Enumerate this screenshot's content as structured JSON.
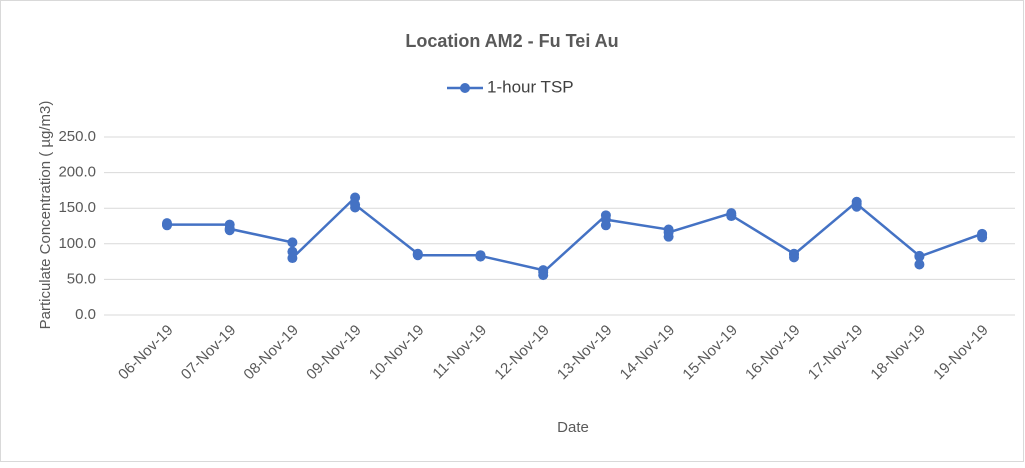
{
  "chart_data": {
    "type": "line",
    "title": "Location AM2 - Fu Tei Au",
    "x_label": "Date",
    "y_label": "Particulate Concentration ( µg/m3)",
    "categories": [
      "06-Nov-19",
      "07-Nov-19",
      "08-Nov-19",
      "09-Nov-19",
      "10-Nov-19",
      "11-Nov-19",
      "12-Nov-19",
      "13-Nov-19",
      "14-Nov-19",
      "15-Nov-19",
      "16-Nov-19",
      "17-Nov-19",
      "18-Nov-19",
      "19-Nov-19"
    ],
    "series": [
      {
        "name": "1-hour TSP",
        "color": "#4472c4",
        "values": [
          [
            129,
            126,
            127
          ],
          [
            127,
            119,
            121
          ],
          [
            102,
            89,
            80
          ],
          [
            165,
            151,
            155
          ],
          [
            86,
            85,
            84
          ],
          [
            84,
            82,
            83
          ],
          [
            63,
            56,
            60
          ],
          [
            140,
            126,
            134
          ],
          [
            120,
            110,
            116
          ],
          [
            143,
            139,
            140
          ],
          [
            86,
            81,
            85
          ],
          [
            159,
            152,
            156
          ],
          [
            83,
            71,
            82
          ],
          [
            114,
            109,
            113
          ]
        ]
      }
    ],
    "ylim": [
      0,
      250
    ],
    "yticks": [
      {
        "value": 0,
        "label": "0.0"
      },
      {
        "value": 50,
        "label": "50.0"
      },
      {
        "value": 100,
        "label": "100.0"
      },
      {
        "value": 150,
        "label": "150.0"
      },
      {
        "value": 200,
        "label": "200.0"
      },
      {
        "value": 250,
        "label": "250.0"
      }
    ],
    "grid": true,
    "legend": "top"
  }
}
